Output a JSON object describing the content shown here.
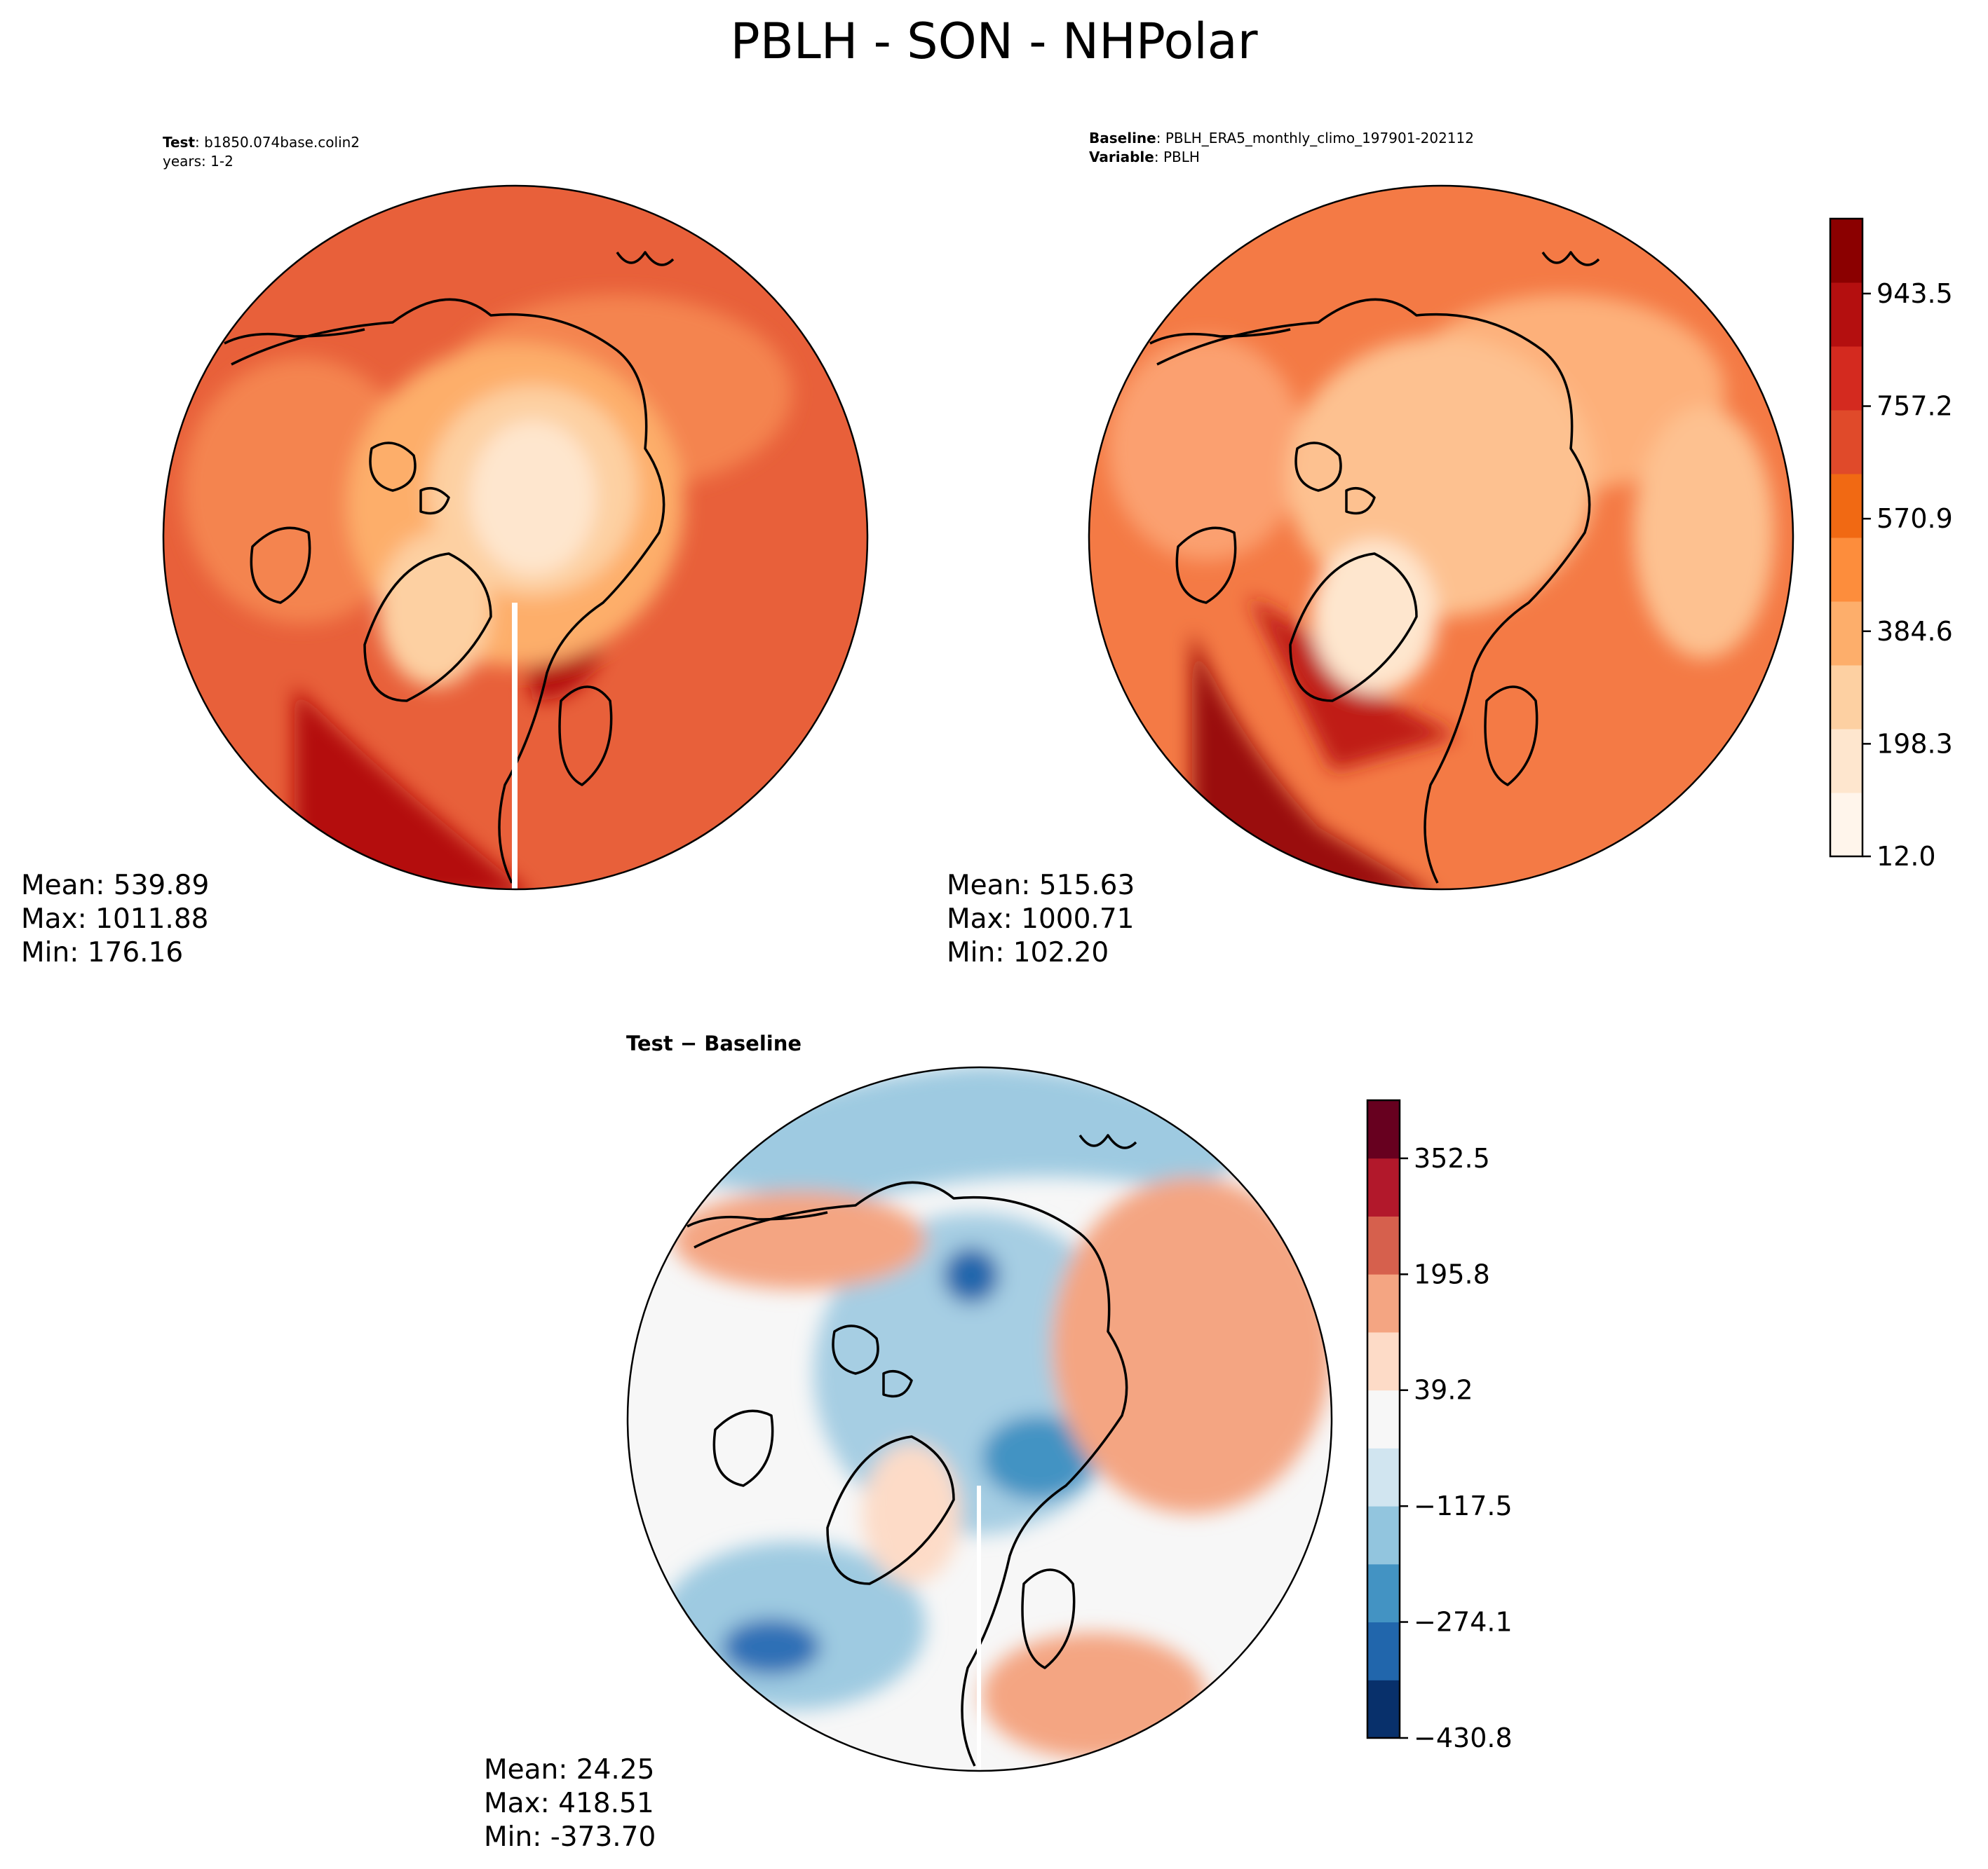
{
  "figure": {
    "title": "PBLH - SON - NHPolar"
  },
  "panels": {
    "test": {
      "header_key": "Test",
      "header_value": "b1850.074base.colin2",
      "header_line2": "years: 1-2",
      "stats": {
        "mean": "Mean: 539.89",
        "max": "Max: 1011.88",
        "min": "Min: 176.16"
      }
    },
    "baseline": {
      "header_key": "Baseline",
      "header_value": "PBLH_ERA5_monthly_climo_197901-202112",
      "header2_key": "Variable",
      "header2_value": "PBLH",
      "stats": {
        "mean": "Mean: 515.63",
        "max": "Max: 1000.71",
        "min": "Min: 102.20"
      }
    },
    "diff": {
      "header": "Test − Baseline",
      "stats": {
        "mean": "Mean: 24.25",
        "max": "Max: 418.51",
        "min": "Min: -373.70"
      }
    }
  },
  "chart_data": [
    {
      "type": "heatmap",
      "name": "test",
      "title": "Test: b1850.074base.colin2 years: 1-2",
      "projection": "north-polar-stereographic",
      "stats": {
        "mean": 539.89,
        "max": 1011.88,
        "min": 176.16
      },
      "colorbar_ref": "abs"
    },
    {
      "type": "heatmap",
      "name": "baseline",
      "title": "Baseline: PBLH_ERA5_monthly_climo_197901-202112 Variable: PBLH",
      "projection": "north-polar-stereographic",
      "stats": {
        "mean": 515.63,
        "max": 1000.71,
        "min": 102.2
      },
      "colorbar_ref": "abs"
    },
    {
      "type": "heatmap",
      "name": "diff",
      "title": "Test − Baseline",
      "projection": "north-polar-stereographic",
      "stats": {
        "mean": 24.25,
        "max": 418.51,
        "min": -373.7
      },
      "colorbar_ref": "diff"
    }
  ],
  "colorbars": {
    "abs": {
      "min": 12.0,
      "max": 1067.5,
      "ticks": [
        12.0,
        198.3,
        384.6,
        570.9,
        757.2,
        943.5
      ],
      "tick_labels": [
        "12.0",
        "198.3",
        "384.6",
        "570.9",
        "757.2",
        "943.5"
      ],
      "colors": [
        "#fff5eb",
        "#fee6ce",
        "#fdd0a2",
        "#fdae6b",
        "#fd8d3c",
        "#f16913",
        "#e04a2a",
        "#d42a1f",
        "#b40f0f",
        "#8b0000"
      ]
    },
    "diff": {
      "min": -430.8,
      "max": 431.0,
      "ticks": [
        -430.8,
        -274.1,
        -117.5,
        39.2,
        195.8,
        352.5
      ],
      "tick_labels": [
        "−430.8",
        "−274.1",
        "−117.5",
        "39.2",
        "195.8",
        "352.5"
      ],
      "colors": [
        "#08306b",
        "#2166ac",
        "#4393c3",
        "#92c5de",
        "#d1e5f0",
        "#f7f7f7",
        "#fddbc7",
        "#f4a582",
        "#d6604d",
        "#b2182b",
        "#67001f"
      ]
    }
  },
  "colors": {
    "test_base": "#e8603a",
    "test_mid": "#fdae6b",
    "test_inner": "#fee6ce",
    "test_hot": "#b40f0f",
    "base_base": "#f47a45",
    "base_mid": "#fdb07a",
    "base_hot": "#a80c0c",
    "diff_base": "#f7f7f7",
    "diff_blue": "#9ecae1",
    "diff_deep": "#2f70b6",
    "diff_red": "#f4a582",
    "land_line": "#000000"
  }
}
